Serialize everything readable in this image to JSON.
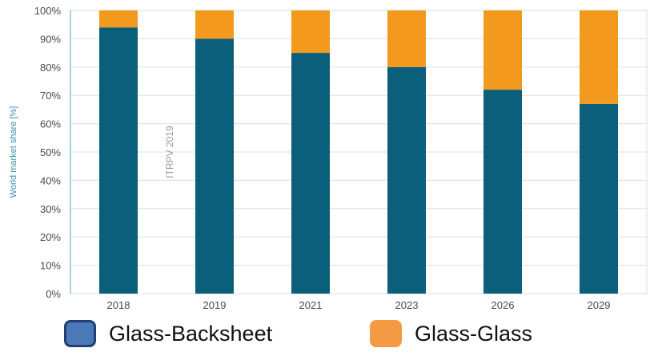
{
  "chart_data": {
    "type": "bar",
    "stacked": true,
    "categories": [
      "2018",
      "2019",
      "2021",
      "2023",
      "2026",
      "2029"
    ],
    "series": [
      {
        "name": "Glass-Backsheet",
        "values": [
          94,
          90,
          85,
          80,
          72,
          67
        ]
      },
      {
        "name": "Glass-Glass",
        "values": [
          6,
          10,
          15,
          20,
          28,
          33
        ]
      }
    ],
    "ylabel": "World market share [%]",
    "ylim": [
      0,
      100
    ],
    "yticks": [
      "0%",
      "10%",
      "20%",
      "30%",
      "40%",
      "50%",
      "60%",
      "70%",
      "80%",
      "90%",
      "100%"
    ],
    "grid": true,
    "watermark": "ITRPV 2019",
    "legend_position": "bottom"
  },
  "colors": {
    "glass_backsheet_bar": "#0b5f7a",
    "glass_glass_bar": "#f39a1e",
    "legend_backsheet": "#4a78b8",
    "legend_backsheet_border": "#1f3f75",
    "legend_glass": "#f39a42",
    "grid": "#cfe3e8",
    "axis": "#8fc3d0"
  },
  "legend": {
    "items": [
      {
        "label": "Glass-Backsheet",
        "icon": "square-swatch"
      },
      {
        "label": "Glass-Glass",
        "icon": "square-swatch"
      }
    ]
  }
}
